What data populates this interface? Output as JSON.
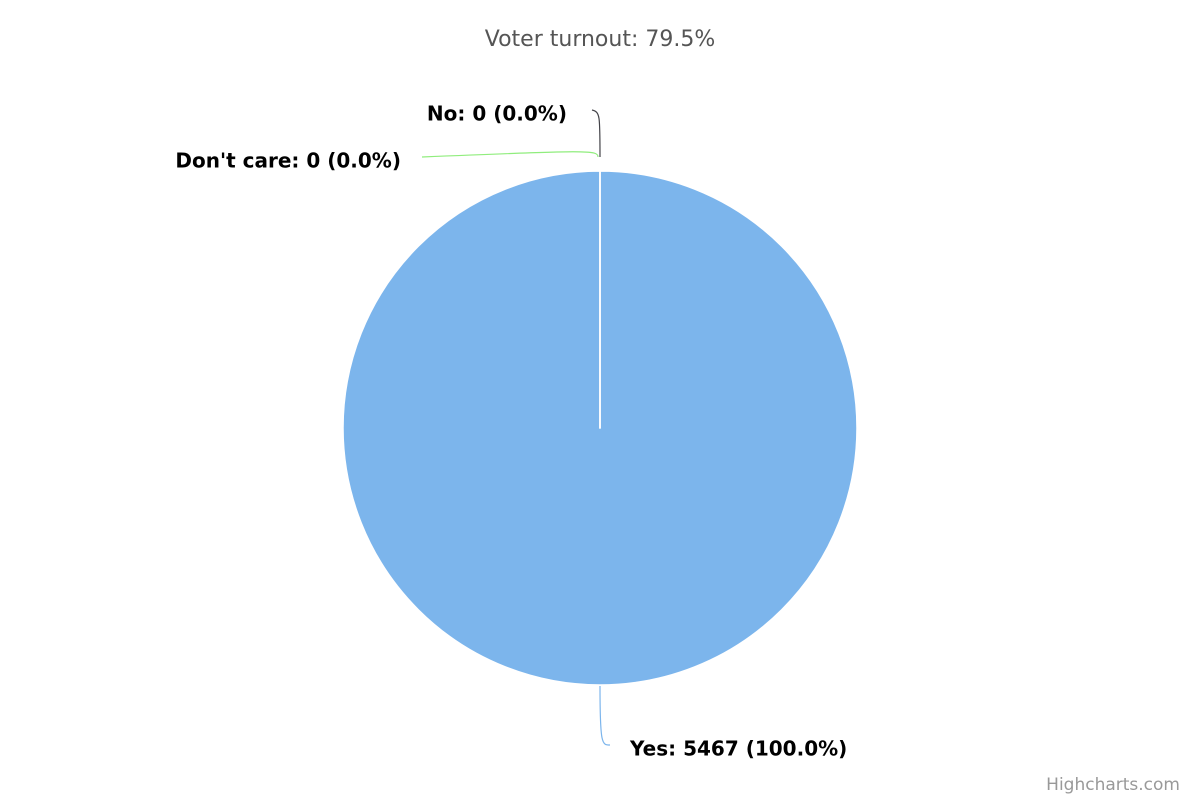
{
  "chart_data": {
    "type": "pie",
    "title": "Voter turnout: 79.5%",
    "categories": [
      "Yes",
      "No",
      "Don't care"
    ],
    "values": [
      5467,
      0,
      0
    ],
    "value_labels": [
      "Yes: 5467 (100.0%)",
      "No: 0 (0.0%)",
      "Don't care: 0 (0.0%)"
    ],
    "colors": [
      "#7cb5ec",
      "#434348",
      "#90ed7d"
    ],
    "credits": "Highcharts.com"
  }
}
